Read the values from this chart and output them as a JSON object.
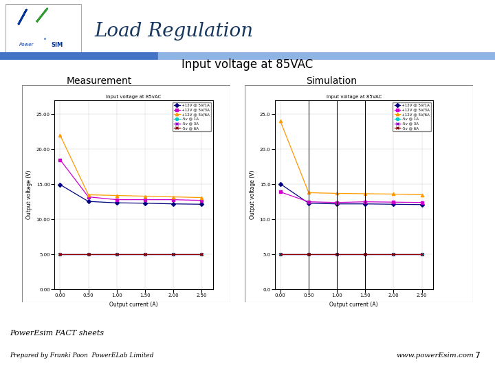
{
  "title": "Load Regulation",
  "subtitle": "Input voltage at 85VAC",
  "meas_label": "Measurement",
  "sim_label": "Simulation",
  "bg_color": "#ffffff",
  "x_values": [
    0.0,
    0.5,
    1.0,
    1.5,
    2.0,
    2.5
  ],
  "x_label_meas": "Output current (A)",
  "x_label_sim": "Output current (A)",
  "x_ticks": [
    0.0,
    0.5,
    1.0,
    1.5,
    2.0,
    2.5
  ],
  "x_tick_labels_meas": [
    "0.00",
    "0.50",
    "1.00",
    "1.50",
    "2.00",
    "2.50"
  ],
  "x_tick_labels_sim": [
    "0.00",
    "0.50",
    "1.00",
    "1.50",
    "2.00",
    "2.50"
  ],
  "meas_chart_title": "Input voltage at 85vAC",
  "meas_ylabel": "Output voltage (V)",
  "meas_ylim": [
    0,
    27
  ],
  "meas_yticks": [
    0.0,
    5.0,
    10.0,
    15.0,
    20.0,
    25.0
  ],
  "meas_ytick_labels": [
    "0.00",
    "5.00",
    "10.00",
    "15.00",
    "20.00",
    "25.00"
  ],
  "sim_chart_title": "Input voltage at 85VAC",
  "sim_ylabel": "Output voltage (V)",
  "sim_ylim": [
    0,
    27
  ],
  "sim_yticks": [
    0.0,
    5.0,
    10.0,
    15.0,
    20.0,
    25.0
  ],
  "sim_ytick_labels": [
    "0.0",
    "5.0",
    "10.0",
    "15.0",
    "20.0",
    "25.0"
  ],
  "series": [
    {
      "label_meas": "+12V @ 5V/1A",
      "label_sim": "+12V @ 5V/1A",
      "color_meas": "#000080",
      "color_sim": "#000080",
      "marker": "D",
      "meas_values": [
        14.95,
        12.55,
        12.35,
        12.3,
        12.2,
        12.15
      ],
      "sim_values": [
        15.05,
        12.3,
        12.2,
        12.2,
        12.15,
        12.1
      ]
    },
    {
      "label_meas": "+12V @ 5V/3A",
      "label_sim": "+12V @ 5V/3A",
      "color_meas": "#cc00cc",
      "color_sim": "#cc00cc",
      "marker": "s",
      "meas_values": [
        18.5,
        13.2,
        12.8,
        12.8,
        12.8,
        12.7
      ],
      "sim_values": [
        13.9,
        12.5,
        12.4,
        12.5,
        12.45,
        12.4
      ]
    },
    {
      "label_meas": "+12V @ 5V/6A",
      "label_sim": "+12V @ 5V/6A",
      "color_meas": "#ff9900",
      "color_sim": "#ff9900",
      "marker": "^",
      "meas_values": [
        22.0,
        13.5,
        13.4,
        13.3,
        13.2,
        13.1
      ],
      "sim_values": [
        24.0,
        13.8,
        13.7,
        13.65,
        13.6,
        13.5
      ]
    },
    {
      "label_meas": "-5v @ 1A",
      "label_sim": "-5v @ 1A",
      "color_meas": "#00cccc",
      "color_sim": "#00cccc",
      "marker": "o",
      "meas_values": [
        5.05,
        5.05,
        5.05,
        5.05,
        5.05,
        5.05
      ],
      "sim_values": [
        5.05,
        5.05,
        5.05,
        5.05,
        5.05,
        5.05
      ]
    },
    {
      "label_meas": "-5v @ 3A",
      "label_sim": "-5v @ 3A",
      "color_meas": "#9900cc",
      "color_sim": "#9900cc",
      "marker": "x",
      "meas_values": [
        5.05,
        5.05,
        5.05,
        5.05,
        5.05,
        5.05
      ],
      "sim_values": [
        5.05,
        5.05,
        5.05,
        5.05,
        5.05,
        5.05
      ]
    },
    {
      "label_meas": "-5v @ 6A",
      "label_sim": "-5v @ 6A",
      "color_meas": "#8b0000",
      "color_sim": "#8b0000",
      "marker": "x",
      "meas_values": [
        5.05,
        5.05,
        5.05,
        5.05,
        5.05,
        5.05
      ],
      "sim_values": [
        5.05,
        5.05,
        5.05,
        5.05,
        5.05,
        5.05
      ]
    }
  ],
  "footer_left1": "PowerEsim FACT sheets",
  "footer_left2": "Prepared by Franki Poon  PowerELab Limited",
  "footer_right1": "www.powerEsim.com",
  "footer_page": "7",
  "bar_color1": "#4472c4",
  "bar_color2": "#8db4e2",
  "title_color": "#17375e"
}
